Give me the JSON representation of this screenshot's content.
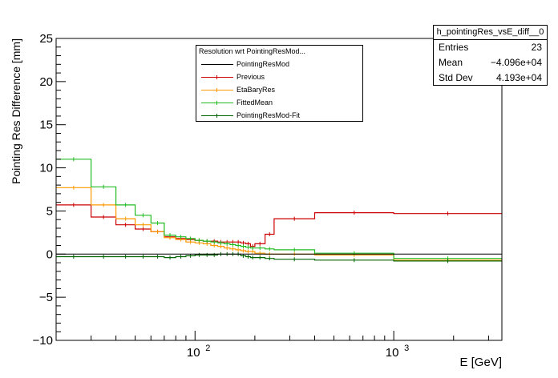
{
  "chart_data": {
    "type": "line",
    "hist_name": "h_pointingRes_vsE_diff__0",
    "stats": [
      {
        "label": "Entries",
        "value": "23"
      },
      {
        "label": "Mean",
        "value": "−4.096e+04"
      },
      {
        "label": "Std Dev",
        "value": "4.193e+04"
      }
    ],
    "legend_header": "Resolution wrt PointingResMod...",
    "xlabel": "E [GeV]",
    "ylabel": "Pointing Res Difference [mm]",
    "xscale": "log",
    "xlim": [
      20,
      3500
    ],
    "ylim": [
      -10,
      25
    ],
    "x_tick_labels": [
      {
        "value": 100,
        "base": "10",
        "exp": "2"
      },
      {
        "value": 1000,
        "base": "10",
        "exp": "3"
      }
    ],
    "y_ticks": [
      -10,
      -5,
      0,
      5,
      10,
      15,
      20,
      25
    ],
    "bin_edges": [
      20,
      30,
      40,
      50,
      60,
      70,
      80,
      90,
      100,
      110,
      120,
      130,
      140,
      150,
      160,
      170,
      180,
      190,
      200,
      225,
      250,
      400,
      1000,
      3500
    ],
    "series": [
      {
        "name": "PointingResMod",
        "color": "#000000",
        "values": [
          0,
          0,
          0,
          0,
          0,
          0,
          0,
          0,
          0,
          0,
          0,
          0,
          0,
          0,
          0,
          0,
          0,
          0,
          0,
          0,
          0,
          0,
          0
        ]
      },
      {
        "name": "Previous",
        "color": "#cc0000",
        "values": [
          5.7,
          4.3,
          3.4,
          2.9,
          2.6,
          2.0,
          1.8,
          1.7,
          1.6,
          1.5,
          1.5,
          1.4,
          1.4,
          1.4,
          1.4,
          1.3,
          1.2,
          0.9,
          1.2,
          2.3,
          4.1,
          4.8,
          4.7
        ]
      },
      {
        "name": "EtaBaryRes",
        "color": "#ff9900",
        "values": [
          7.7,
          5.7,
          4.1,
          3.4,
          2.6,
          1.9,
          1.7,
          1.4,
          1.3,
          1.2,
          1.0,
          0.9,
          0.7,
          0.6,
          0.5,
          0.4,
          0.3,
          0.3,
          0.1,
          0.0,
          0.0,
          -0.1,
          -0.7
        ]
      },
      {
        "name": "FittedMean",
        "color": "#22bb22",
        "values": [
          11.0,
          7.8,
          5.7,
          4.5,
          3.6,
          2.2,
          2.0,
          1.8,
          1.6,
          1.5,
          1.4,
          1.3,
          1.2,
          1.1,
          1.0,
          0.9,
          0.8,
          0.7,
          0.7,
          0.6,
          0.5,
          0.1,
          -0.5
        ]
      },
      {
        "name": "PointingResMod-Fit",
        "color": "#006600",
        "values": [
          -0.3,
          -0.3,
          -0.3,
          -0.3,
          -0.3,
          -0.4,
          -0.3,
          -0.2,
          -0.1,
          -0.1,
          -0.1,
          0.0,
          0.0,
          0.0,
          0.0,
          -0.2,
          -0.3,
          -0.4,
          -0.4,
          -0.5,
          -0.6,
          -0.7,
          -0.8
        ]
      }
    ]
  }
}
